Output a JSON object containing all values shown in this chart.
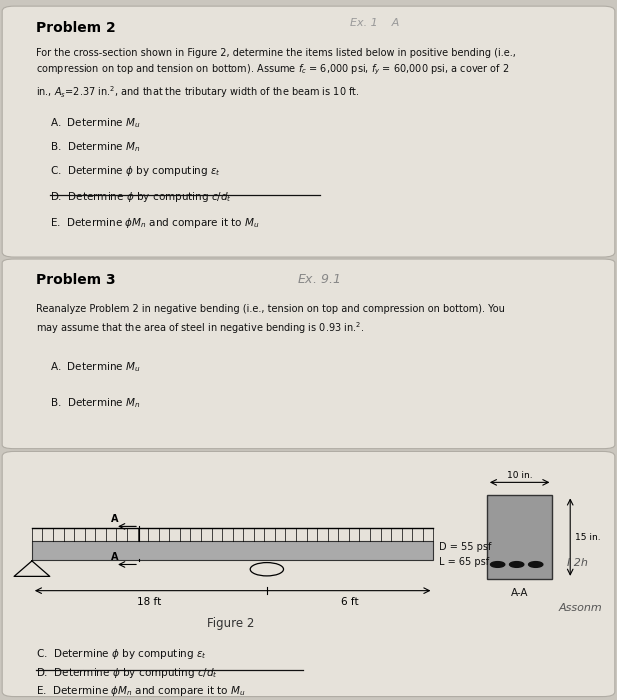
{
  "bg_color": "#cac6be",
  "panel_color": "#e6e2da",
  "panel1": {
    "title": "Problem 2",
    "items": [
      {
        "label": "A.",
        "text": "Determine $M_u$",
        "strikethrough": false
      },
      {
        "label": "B.",
        "text": "Determine $M_n$",
        "strikethrough": false
      },
      {
        "label": "C.",
        "text": "Determine $\\phi$ by computing $\\varepsilon_t$",
        "strikethrough": false
      },
      {
        "label": "D.",
        "text": "Determine $\\phi$ by computing $c/d_t$",
        "strikethrough": true
      },
      {
        "label": "E.",
        "text": "Determine $\\phi M_n$ and compare it to $M_u$",
        "strikethrough": false
      }
    ]
  },
  "panel2": {
    "title": "Problem 3",
    "items": [
      {
        "label": "A.",
        "text": "Determine $M_u$",
        "strikethrough": false
      },
      {
        "label": "B.",
        "text": "Determine $M_n$",
        "strikethrough": false
      }
    ]
  },
  "panel3": {
    "items": [
      {
        "label": "C.",
        "text": "Determine $\\phi$ by computing $\\varepsilon_t$",
        "strikethrough": false
      },
      {
        "label": "D.",
        "text": "Determine $\\phi$ by computing $c/d_t$",
        "strikethrough": true
      },
      {
        "label": "E.",
        "text": "Determine $\\phi M_n$ and compare it to $M_u$",
        "strikethrough": false
      }
    ]
  }
}
